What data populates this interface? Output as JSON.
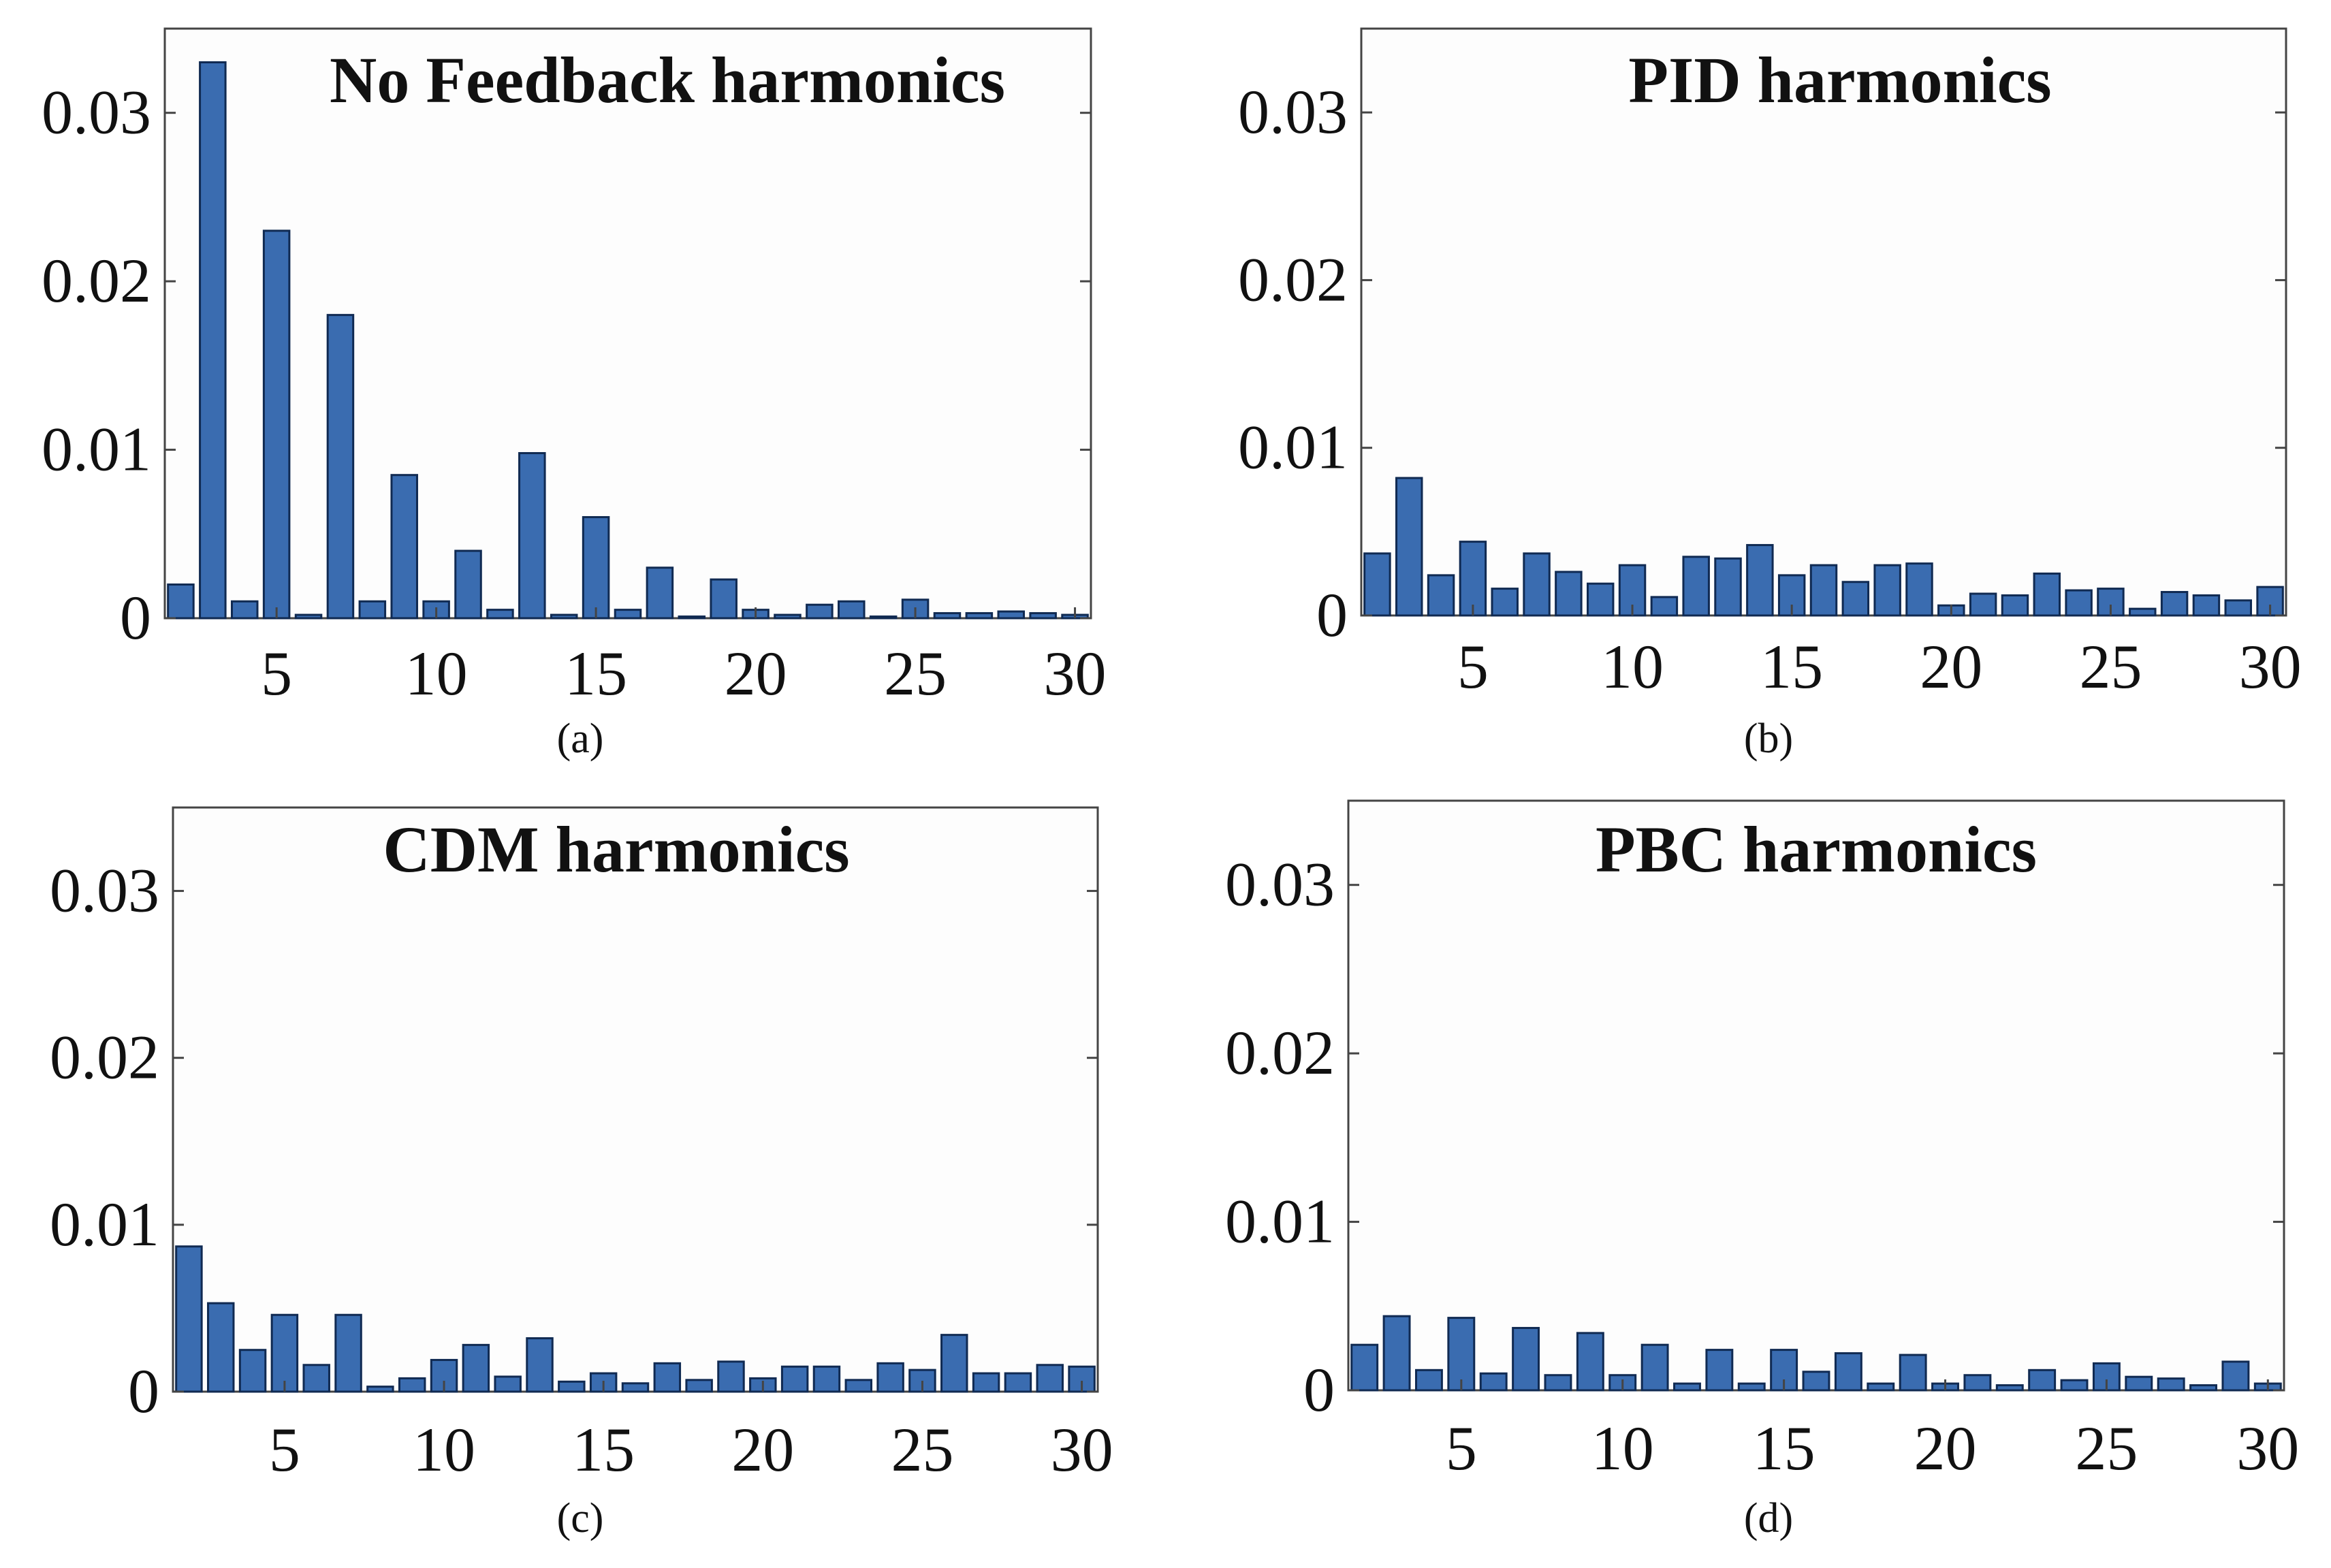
{
  "colors": {
    "bar": "#3a6cb0",
    "bar_edge": "#102a52",
    "axis": "#444444",
    "text": "#111111"
  },
  "chart_data": [
    {
      "type": "bar",
      "title": "No Feedback harmonics",
      "caption": "(a)",
      "xlabel": "",
      "ylabel": "",
      "xlim": [
        2,
        30
      ],
      "ylim": [
        0,
        0.035
      ],
      "xticks": [
        5,
        10,
        15,
        20,
        25,
        30
      ],
      "xtick_labels": [
        "5",
        "10",
        "15",
        "20",
        "25",
        "30"
      ],
      "yticks": [
        0,
        0.01,
        0.02,
        0.03
      ],
      "ytick_labels": [
        "0",
        "0.01",
        "0.02",
        "0.03"
      ],
      "categories": [
        2,
        3,
        4,
        5,
        6,
        7,
        8,
        9,
        10,
        11,
        12,
        13,
        14,
        15,
        16,
        17,
        18,
        19,
        20,
        21,
        22,
        23,
        24,
        25,
        26,
        27,
        28,
        29,
        30
      ],
      "values": [
        0.002,
        0.033,
        0.001,
        0.023,
        0.0002,
        0.018,
        0.001,
        0.0085,
        0.001,
        0.004,
        0.0005,
        0.0098,
        0.0002,
        0.006,
        0.0005,
        0.003,
        0.0001,
        0.0023,
        0.0005,
        0.0002,
        0.0008,
        0.001,
        0.0001,
        0.0011,
        0.0003,
        0.0003,
        0.0004,
        0.0003,
        0.0002
      ]
    },
    {
      "type": "bar",
      "title": "PID harmonics",
      "caption": "(b)",
      "xlabel": "",
      "ylabel": "",
      "xlim": [
        2,
        30
      ],
      "ylim": [
        0,
        0.035
      ],
      "xticks": [
        5,
        10,
        15,
        20,
        25,
        30
      ],
      "xtick_labels": [
        "5",
        "10",
        "15",
        "20",
        "25",
        "30"
      ],
      "yticks": [
        0,
        0.01,
        0.02,
        0.03
      ],
      "ytick_labels": [
        "0",
        "0.01",
        "0.02",
        "0.03"
      ],
      "categories": [
        2,
        3,
        4,
        5,
        6,
        7,
        8,
        9,
        10,
        11,
        12,
        13,
        14,
        15,
        16,
        17,
        18,
        19,
        20,
        21,
        22,
        23,
        24,
        25,
        26,
        27,
        28,
        29,
        30
      ],
      "values": [
        0.0037,
        0.0082,
        0.0024,
        0.0044,
        0.0016,
        0.0037,
        0.0026,
        0.0019,
        0.003,
        0.0011,
        0.0035,
        0.0034,
        0.0042,
        0.0024,
        0.003,
        0.002,
        0.003,
        0.0031,
        0.0006,
        0.0013,
        0.0012,
        0.0025,
        0.0015,
        0.0016,
        0.0004,
        0.0014,
        0.0012,
        0.0009,
        0.0017
      ]
    },
    {
      "type": "bar",
      "title": "CDM harmonics",
      "caption": "(c)",
      "xlabel": "",
      "ylabel": "",
      "xlim": [
        2,
        30
      ],
      "ylim": [
        0,
        0.035
      ],
      "xticks": [
        5,
        10,
        15,
        20,
        25,
        30
      ],
      "xtick_labels": [
        "5",
        "10",
        "15",
        "20",
        "25",
        "30"
      ],
      "yticks": [
        0,
        0.01,
        0.02,
        0.03
      ],
      "ytick_labels": [
        "0",
        "0.01",
        "0.02",
        "0.03"
      ],
      "categories": [
        2,
        3,
        4,
        5,
        6,
        7,
        8,
        9,
        10,
        11,
        12,
        13,
        14,
        15,
        16,
        17,
        18,
        19,
        20,
        21,
        22,
        23,
        24,
        25,
        26,
        27,
        28,
        29,
        30
      ],
      "values": [
        0.0087,
        0.0053,
        0.0025,
        0.0046,
        0.0016,
        0.0046,
        0.0003,
        0.0008,
        0.0019,
        0.0028,
        0.0009,
        0.0032,
        0.0006,
        0.0011,
        0.0005,
        0.0017,
        0.0007,
        0.0018,
        0.0008,
        0.0015,
        0.0015,
        0.0007,
        0.0017,
        0.0013,
        0.0034,
        0.0011,
        0.0011,
        0.0016,
        0.0015
      ]
    },
    {
      "type": "bar",
      "title": "PBC harmonics",
      "caption": "(d)",
      "xlabel": "",
      "ylabel": "",
      "xlim": [
        2,
        30
      ],
      "ylim": [
        0,
        0.035
      ],
      "xticks": [
        5,
        10,
        15,
        20,
        25,
        30
      ],
      "xtick_labels": [
        "5",
        "10",
        "15",
        "20",
        "25",
        "30"
      ],
      "yticks": [
        0,
        0.01,
        0.02,
        0.03
      ],
      "ytick_labels": [
        "0",
        "0.01",
        "0.02",
        "0.03"
      ],
      "categories": [
        2,
        3,
        4,
        5,
        6,
        7,
        8,
        9,
        10,
        11,
        12,
        13,
        14,
        15,
        16,
        17,
        18,
        19,
        20,
        21,
        22,
        23,
        24,
        25,
        26,
        27,
        28,
        29,
        30
      ],
      "values": [
        0.0027,
        0.0044,
        0.0012,
        0.0043,
        0.001,
        0.0037,
        0.0009,
        0.0034,
        0.0009,
        0.0027,
        0.0004,
        0.0024,
        0.0004,
        0.0024,
        0.0011,
        0.0022,
        0.0004,
        0.0021,
        0.0004,
        0.0009,
        0.0003,
        0.0012,
        0.0006,
        0.0016,
        0.0008,
        0.0007,
        0.0003,
        0.0017,
        0.0004
      ]
    }
  ]
}
